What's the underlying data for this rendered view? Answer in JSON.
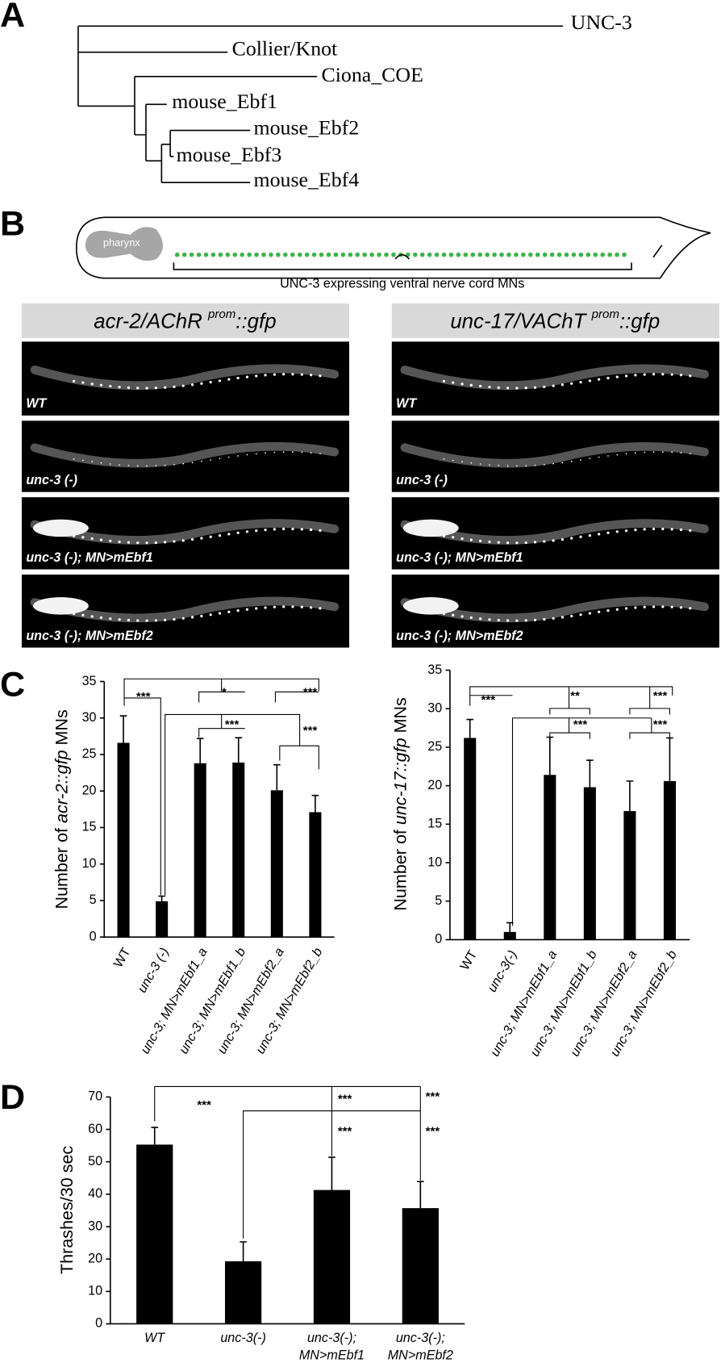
{
  "panel_labels": [
    "A",
    "B",
    "C",
    "D"
  ],
  "tree": {
    "leaves": [
      "UNC-3",
      "Collier/Knot",
      "Ciona_COE",
      "mouse_Ebf1",
      "mouse_Ebf2",
      "mouse_Ebf3",
      "mouse_Ebf4"
    ]
  },
  "schematic": {
    "organ_label": "pharynx",
    "caption": "UNC-3 expressing ventral nerve cord MNs"
  },
  "image_panels": [
    {
      "header": [
        "acr-2/AChR ",
        "prom",
        "::gfp"
      ],
      "labels": [
        "WT",
        "unc-3 (-)",
        "unc-3 (-); MN>mEbf1",
        "unc-3 (-); MN>mEbf2"
      ]
    },
    {
      "header": [
        "unc-17/VAChT ",
        "prom",
        "::gfp"
      ],
      "labels": [
        "WT",
        "unc-3 (-)",
        "unc-3 (-); MN>mEbf1",
        "unc-3 (-); MN>mEbf2"
      ]
    }
  ],
  "chart_data": [
    {
      "type": "bar",
      "y_label": [
        "Number of ",
        "acr-2::gfp",
        " MNs"
      ],
      "categories": [
        "WT",
        "unc-3 (-)",
        "unc-3; MN>mEbf1_a",
        "unc-3; MN>mEbf1_b",
        "unc-3; MN>mEbf2_a",
        "unc-3; MN>mEbf2_b"
      ],
      "values": [
        26.6,
        4.9,
        23.8,
        23.9,
        20.1,
        17.1
      ],
      "errors": [
        3.7,
        0.7,
        3.4,
        3.4,
        3.5,
        2.3
      ],
      "color": "#000000",
      "ylim": [
        0,
        35
      ],
      "yticks": [
        0,
        5,
        10,
        15,
        20,
        25,
        30,
        35
      ],
      "annotations": [
        "***",
        "*",
        "***",
        "***",
        "***"
      ]
    },
    {
      "type": "bar",
      "y_label": [
        "Number of ",
        "unc-17::gfp",
        " MNs"
      ],
      "categories": [
        "WT",
        "unc-3(-)",
        "unc-3; MN>mEbf1_a",
        "unc-3; MN>mEbf1_b",
        "unc-3; MN>mEbf2_a",
        "unc-3; MN>mEbf2_b"
      ],
      "values": [
        26.2,
        1.0,
        21.4,
        19.8,
        16.7,
        20.6
      ],
      "errors": [
        2.4,
        1.2,
        4.9,
        3.5,
        3.9,
        5.6
      ],
      "color": "#000000",
      "ylim": [
        0,
        35
      ],
      "yticks": [
        0,
        5,
        10,
        15,
        20,
        25,
        30,
        35
      ],
      "annotations": [
        "***",
        "**",
        "***",
        "***",
        "***"
      ]
    },
    {
      "type": "bar",
      "y_label": [
        "Thrashes/30 sec"
      ],
      "categories": [
        "WT",
        "unc-3(-)",
        "unc-3(-); MN>mEbf1",
        "unc-3(-); MN>mEbf2"
      ],
      "values": [
        55.3,
        19.3,
        41.3,
        35.7
      ],
      "errors": [
        5.3,
        6.0,
        10.1,
        8.2
      ],
      "color": "#000000",
      "ylim": [
        0,
        70
      ],
      "yticks": [
        0,
        10,
        20,
        30,
        40,
        50,
        60,
        70
      ],
      "annotations": [
        "***",
        "***",
        "***",
        "***",
        "***"
      ]
    }
  ]
}
